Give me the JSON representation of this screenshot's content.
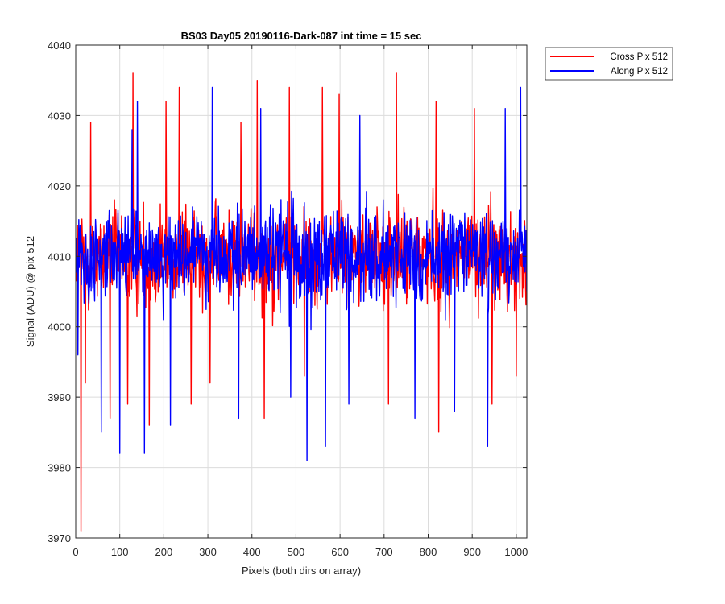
{
  "chart_data": {
    "type": "line",
    "title": "BS03 Day05 20190116-Dark-087 int time = 15 sec",
    "xlabel": "Pixels (both dirs on array)",
    "ylabel": "Signal (ADU) @ pix 512",
    "xlim": [
      0,
      1024
    ],
    "ylim": [
      3970,
      4040
    ],
    "xticks": [
      0,
      100,
      200,
      300,
      400,
      500,
      600,
      700,
      800,
      900,
      1000
    ],
    "yticks": [
      3970,
      3980,
      3990,
      4000,
      4010,
      4020,
      4030,
      4040
    ],
    "grid": true,
    "legend_position": "outside-top-right",
    "series": [
      {
        "name": "Cross Pix 512",
        "color": "#ff0000",
        "x_start": 1,
        "x_step": 1,
        "count": 1024,
        "mean": 4010,
        "typical_range": [
          3996,
          4024
        ],
        "extremes": [
          {
            "x": 12,
            "y": 3971
          },
          {
            "x": 22,
            "y": 3992
          },
          {
            "x": 34,
            "y": 4029
          },
          {
            "x": 78,
            "y": 3987
          },
          {
            "x": 118,
            "y": 3989
          },
          {
            "x": 130,
            "y": 4036
          },
          {
            "x": 167,
            "y": 3986
          },
          {
            "x": 205,
            "y": 4032
          },
          {
            "x": 235,
            "y": 4034
          },
          {
            "x": 262,
            "y": 3989
          },
          {
            "x": 305,
            "y": 3992
          },
          {
            "x": 375,
            "y": 4029
          },
          {
            "x": 412,
            "y": 4035
          },
          {
            "x": 428,
            "y": 3987
          },
          {
            "x": 485,
            "y": 4034
          },
          {
            "x": 519,
            "y": 3993
          },
          {
            "x": 560,
            "y": 4034
          },
          {
            "x": 598,
            "y": 4033
          },
          {
            "x": 710,
            "y": 3989
          },
          {
            "x": 728,
            "y": 4036
          },
          {
            "x": 824,
            "y": 3985
          },
          {
            "x": 818,
            "y": 4032
          },
          {
            "x": 905,
            "y": 4031
          },
          {
            "x": 945,
            "y": 3989
          },
          {
            "x": 1000,
            "y": 3993
          }
        ]
      },
      {
        "name": "Along Pix 512",
        "color": "#0000ff",
        "x_start": 1,
        "x_step": 1,
        "count": 1024,
        "mean": 4010,
        "typical_range": [
          3996,
          4024
        ],
        "extremes": [
          {
            "x": 5,
            "y": 3996
          },
          {
            "x": 58,
            "y": 3985
          },
          {
            "x": 100,
            "y": 3982
          },
          {
            "x": 128,
            "y": 4028
          },
          {
            "x": 140,
            "y": 4032
          },
          {
            "x": 156,
            "y": 3982
          },
          {
            "x": 215,
            "y": 3986
          },
          {
            "x": 310,
            "y": 4034
          },
          {
            "x": 370,
            "y": 3987
          },
          {
            "x": 420,
            "y": 4031
          },
          {
            "x": 488,
            "y": 3990
          },
          {
            "x": 525,
            "y": 3981
          },
          {
            "x": 567,
            "y": 3983
          },
          {
            "x": 620,
            "y": 3989
          },
          {
            "x": 645,
            "y": 4030
          },
          {
            "x": 770,
            "y": 3987
          },
          {
            "x": 860,
            "y": 3988
          },
          {
            "x": 935,
            "y": 3983
          },
          {
            "x": 975,
            "y": 4031
          },
          {
            "x": 1010,
            "y": 4034
          }
        ]
      }
    ]
  }
}
